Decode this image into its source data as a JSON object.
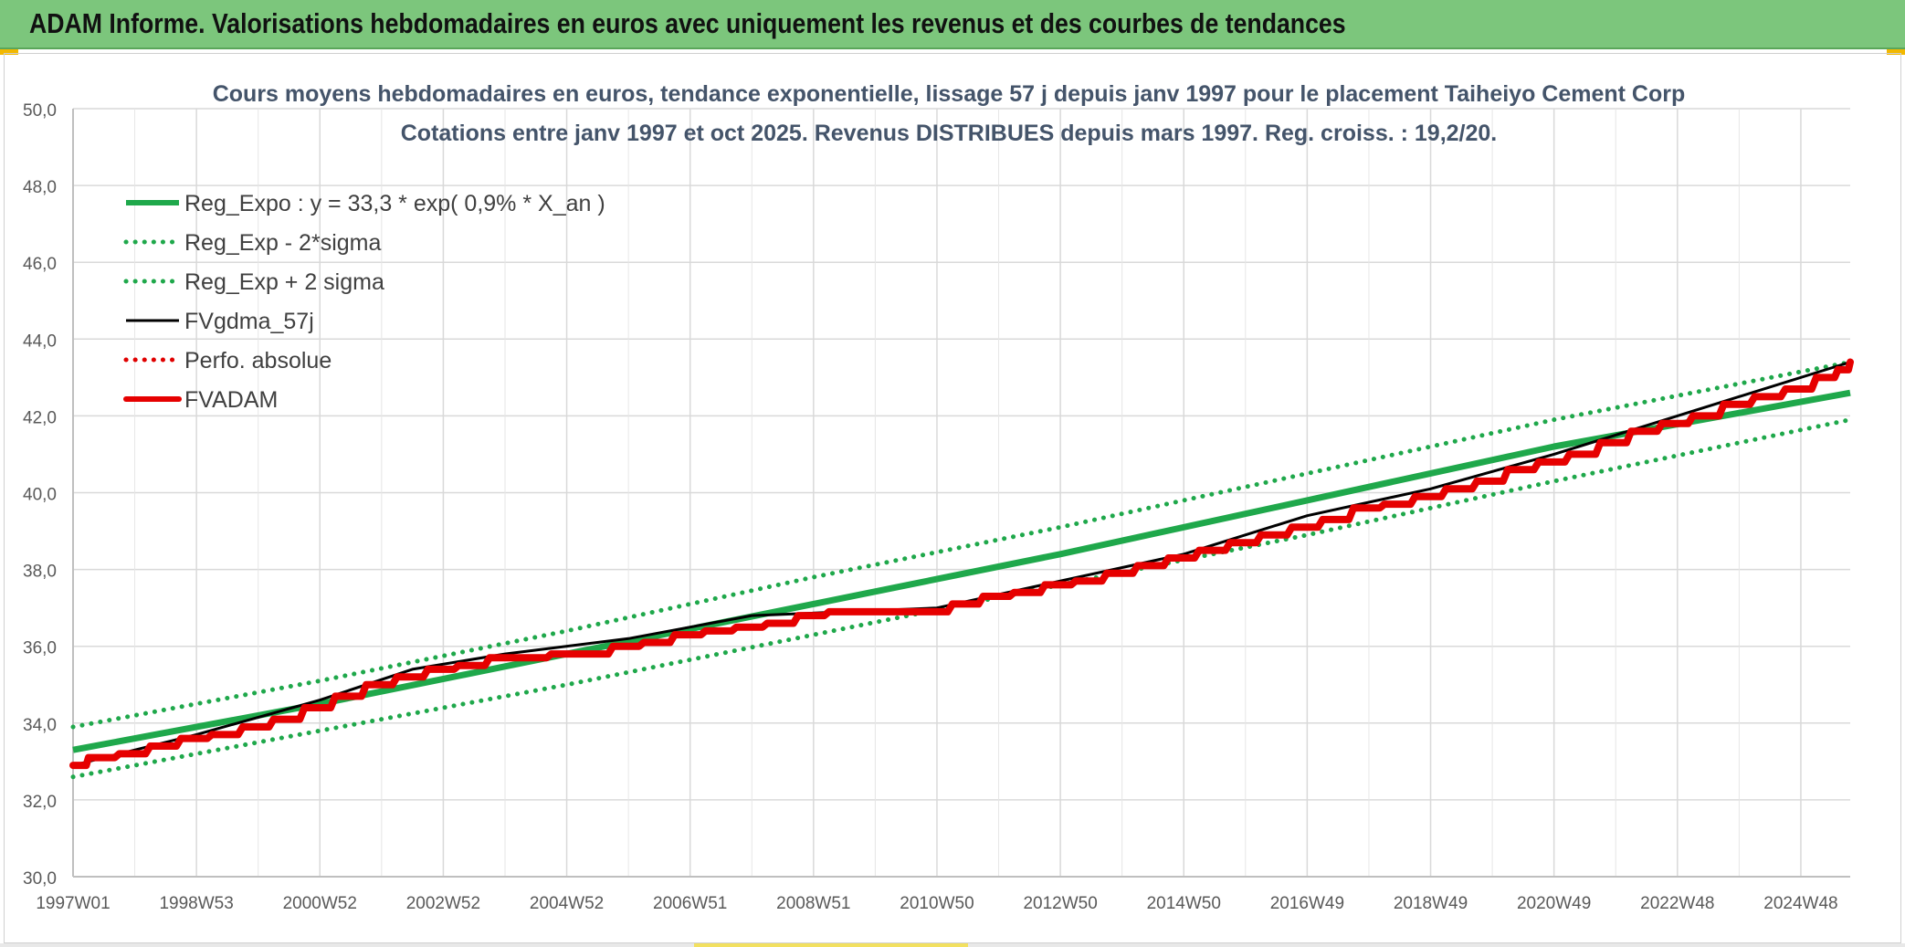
{
  "header": {
    "title": "ADAM Informe. Valorisations hebdomadaires en euros avec uniquement les revenus et des courbes de tendances"
  },
  "chart_data": {
    "type": "line",
    "title": "Cours moyens hebdomadaires en euros, tendance exponentielle, lissage 57 j depuis janv 1997 pour le placement Taiheiyo Cement Corp",
    "subtitle": "Cotations entre janv 1997 et oct 2025. Revenus DISTRIBUES depuis mars 1997. Reg. croiss. : 19,2/20.",
    "xlabel": "",
    "ylabel": "",
    "x_ticks": [
      "1997W01",
      "1998W53",
      "2000W52",
      "2002W52",
      "2004W52",
      "2006W51",
      "2008W51",
      "2010W50",
      "2012W50",
      "2014W50",
      "2016W49",
      "2018W49",
      "2020W49",
      "2022W48",
      "2024W48"
    ],
    "x_tick_years": [
      1997.0,
      1999.0,
      2001.0,
      2003.0,
      2005.0,
      2007.0,
      2009.0,
      2011.0,
      2013.0,
      2015.0,
      2017.0,
      2019.0,
      2021.0,
      2023.0,
      2025.0
    ],
    "xlim": [
      1997.0,
      2025.8
    ],
    "y_ticks": [
      "30,0",
      "32,0",
      "34,0",
      "36,0",
      "38,0",
      "40,0",
      "42,0",
      "44,0",
      "46,0",
      "48,0",
      "50,0"
    ],
    "ylim": [
      30,
      50
    ],
    "grid": true,
    "legend_position": "top-left",
    "series": [
      {
        "name": "Reg_Expo : y = 33,3 * exp( 0,9% *  X_an )",
        "color": "#1fa84b",
        "style": "solid-thick",
        "points": [
          [
            1997.0,
            33.3
          ],
          [
            2001.0,
            34.5
          ],
          [
            2005.0,
            35.8
          ],
          [
            2009.0,
            37.1
          ],
          [
            2013.0,
            38.4
          ],
          [
            2017.0,
            39.8
          ],
          [
            2021.0,
            41.2
          ],
          [
            2025.8,
            42.6
          ]
        ]
      },
      {
        "name": "Reg_Exp - 2*sigma",
        "color": "#1fa84b",
        "style": "dotted",
        "points": [
          [
            1997.0,
            32.6
          ],
          [
            2001.0,
            33.8
          ],
          [
            2005.0,
            35.0
          ],
          [
            2009.0,
            36.3
          ],
          [
            2013.0,
            37.6
          ],
          [
            2017.0,
            38.9
          ],
          [
            2021.0,
            40.3
          ],
          [
            2025.8,
            41.9
          ]
        ]
      },
      {
        "name": "Reg_Exp + 2 sigma",
        "color": "#1fa84b",
        "style": "dotted",
        "points": [
          [
            1997.0,
            33.9
          ],
          [
            2001.0,
            35.1
          ],
          [
            2005.0,
            36.4
          ],
          [
            2009.0,
            37.8
          ],
          [
            2013.0,
            39.1
          ],
          [
            2017.0,
            40.5
          ],
          [
            2021.0,
            41.9
          ],
          [
            2025.8,
            43.4
          ]
        ]
      },
      {
        "name": "FVgdma_57j",
        "color": "#000000",
        "style": "solid",
        "points": [
          [
            1997.0,
            32.9
          ],
          [
            1999.0,
            33.7
          ],
          [
            2001.0,
            34.6
          ],
          [
            2002.5,
            35.4
          ],
          [
            2004.0,
            35.8
          ],
          [
            2006.0,
            36.2
          ],
          [
            2008.0,
            36.8
          ],
          [
            2011.0,
            37.0
          ],
          [
            2013.0,
            37.7
          ],
          [
            2015.0,
            38.4
          ],
          [
            2017.0,
            39.4
          ],
          [
            2019.0,
            40.1
          ],
          [
            2021.0,
            41.0
          ],
          [
            2023.0,
            42.0
          ],
          [
            2025.8,
            43.4
          ]
        ]
      },
      {
        "name": "Perfo. absolue",
        "color": "#e00000",
        "style": "dotted",
        "points": []
      },
      {
        "name": "FVADAM",
        "color": "#e60000",
        "style": "step-thick",
        "points": [
          [
            1997.0,
            32.9
          ],
          [
            1997.25,
            33.1
          ],
          [
            1997.75,
            33.2
          ],
          [
            1998.25,
            33.4
          ],
          [
            1998.75,
            33.6
          ],
          [
            1999.25,
            33.7
          ],
          [
            1999.75,
            33.9
          ],
          [
            2000.25,
            34.1
          ],
          [
            2000.75,
            34.4
          ],
          [
            2001.25,
            34.7
          ],
          [
            2001.75,
            35.0
          ],
          [
            2002.25,
            35.2
          ],
          [
            2002.75,
            35.4
          ],
          [
            2003.25,
            35.5
          ],
          [
            2003.75,
            35.7
          ],
          [
            2004.25,
            35.7
          ],
          [
            2004.75,
            35.8
          ],
          [
            2005.25,
            35.8
          ],
          [
            2005.75,
            36.0
          ],
          [
            2006.25,
            36.1
          ],
          [
            2006.75,
            36.3
          ],
          [
            2007.25,
            36.4
          ],
          [
            2007.75,
            36.5
          ],
          [
            2008.25,
            36.6
          ],
          [
            2008.75,
            36.8
          ],
          [
            2009.25,
            36.9
          ],
          [
            2009.75,
            36.9
          ],
          [
            2010.25,
            36.9
          ],
          [
            2010.75,
            36.9
          ],
          [
            2011.25,
            37.1
          ],
          [
            2011.75,
            37.3
          ],
          [
            2012.25,
            37.4
          ],
          [
            2012.75,
            37.6
          ],
          [
            2013.25,
            37.7
          ],
          [
            2013.75,
            37.9
          ],
          [
            2014.25,
            38.1
          ],
          [
            2014.75,
            38.3
          ],
          [
            2015.25,
            38.5
          ],
          [
            2015.75,
            38.7
          ],
          [
            2016.25,
            38.9
          ],
          [
            2016.75,
            39.1
          ],
          [
            2017.25,
            39.3
          ],
          [
            2017.75,
            39.6
          ],
          [
            2018.25,
            39.7
          ],
          [
            2018.75,
            39.9
          ],
          [
            2019.25,
            40.1
          ],
          [
            2019.75,
            40.3
          ],
          [
            2020.25,
            40.6
          ],
          [
            2020.75,
            40.8
          ],
          [
            2021.25,
            41.0
          ],
          [
            2021.75,
            41.3
          ],
          [
            2022.25,
            41.6
          ],
          [
            2022.75,
            41.8
          ],
          [
            2023.25,
            42.0
          ],
          [
            2023.75,
            42.3
          ],
          [
            2024.25,
            42.5
          ],
          [
            2024.75,
            42.7
          ],
          [
            2025.25,
            43.0
          ],
          [
            2025.6,
            43.2
          ],
          [
            2025.8,
            43.4
          ]
        ]
      }
    ]
  }
}
